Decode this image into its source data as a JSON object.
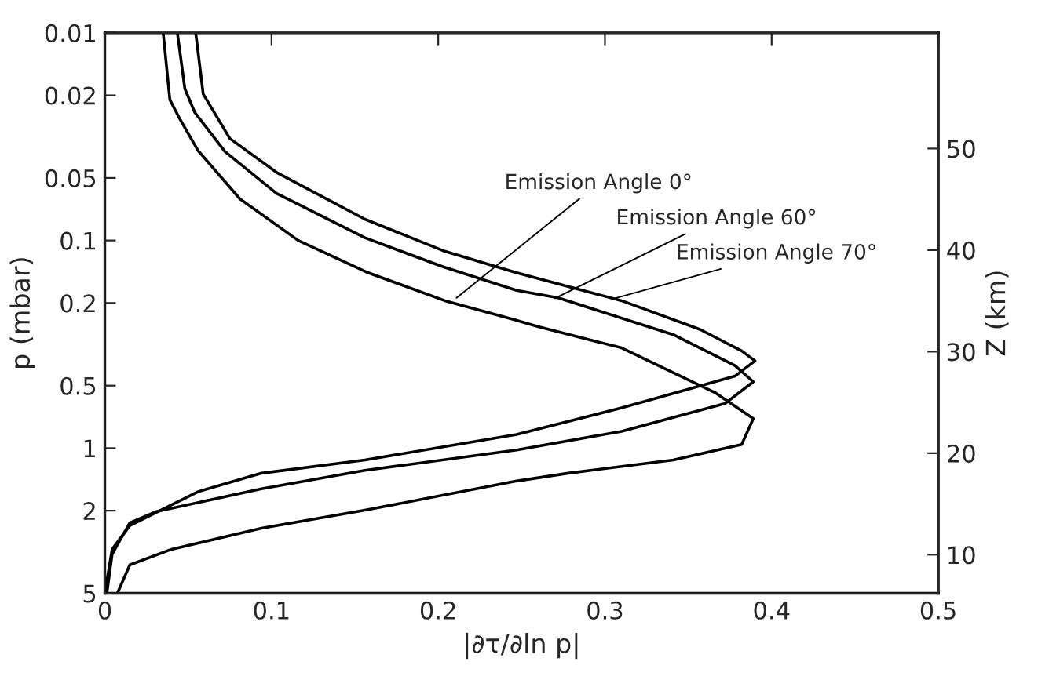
{
  "chart_data": {
    "type": "line",
    "xlabel": "|∂τ/∂ln p|",
    "ylabel": "p (mbar)",
    "y2label": "Z (km)",
    "xlim": [
      0,
      0.5
    ],
    "xticks": [
      0,
      0.1,
      0.2,
      0.3,
      0.4,
      0.5
    ],
    "ylim": [
      5,
      0.01
    ],
    "yticks": [
      0.01,
      0.02,
      0.05,
      0.1,
      0.2,
      0.5,
      1,
      2,
      5
    ],
    "y2lim": [
      6.2,
      61.4
    ],
    "y2ticks": [
      10,
      20,
      30,
      40,
      50
    ],
    "log": "y",
    "grid": false,
    "legend": false,
    "line_style": "solid",
    "marker": "none",
    "series": [
      {
        "color": "#000000",
        "x": [
          0.035,
          0.039,
          0.045,
          0.056,
          0.081,
          0.116,
          0.157,
          0.204,
          0.245,
          0.26,
          0.31,
          0.366,
          0.389,
          0.382,
          0.341,
          0.278,
          0.247,
          0.156,
          0.094,
          0.04,
          0.015,
          0.0075
        ],
        "values": [
          0.01,
          0.021,
          0.026,
          0.037,
          0.063,
          0.1,
          0.142,
          0.195,
          0.24,
          0.26,
          0.329,
          0.54,
          0.72,
          0.96,
          1.14,
          1.32,
          1.44,
          1.99,
          2.43,
          3.07,
          3.65,
          5
        ]
      },
      {
        "color": "#000000",
        "x": [
          0.0435,
          0.048,
          0.054,
          0.072,
          0.103,
          0.156,
          0.203,
          0.247,
          0.272,
          0.341,
          0.378,
          0.389,
          0.372,
          0.31,
          0.247,
          0.156,
          0.094,
          0.031,
          0.015,
          0.0044,
          0.0012
        ],
        "values": [
          0.01,
          0.0186,
          0.0242,
          0.0373,
          0.0593,
          0.097,
          0.134,
          0.174,
          0.189,
          0.284,
          0.4,
          0.479,
          0.61,
          0.83,
          1.02,
          1.28,
          1.57,
          2.02,
          2.29,
          3.24,
          5
        ]
      },
      {
        "color": "#000000",
        "x": [
          0.0545,
          0.059,
          0.075,
          0.103,
          0.156,
          0.203,
          0.247,
          0.31,
          0.357,
          0.382,
          0.39,
          0.378,
          0.31,
          0.247,
          0.156,
          0.094,
          0.056,
          0.015,
          0.0044,
          0.0
        ],
        "values": [
          0.01,
          0.0197,
          0.0323,
          0.047,
          0.079,
          0.112,
          0.143,
          0.195,
          0.268,
          0.34,
          0.38,
          0.45,
          0.64,
          0.86,
          1.14,
          1.32,
          1.62,
          2.36,
          3.07,
          5
        ]
      }
    ],
    "annotations": [
      {
        "text": "Emission Angle 0°",
        "x": 0.211,
        "y": 0.189
      },
      {
        "text": "Emission Angle 60°",
        "x": 0.27,
        "y": 0.19
      },
      {
        "text": "Emission Angle 70°",
        "x": 0.306,
        "y": 0.19
      }
    ]
  }
}
